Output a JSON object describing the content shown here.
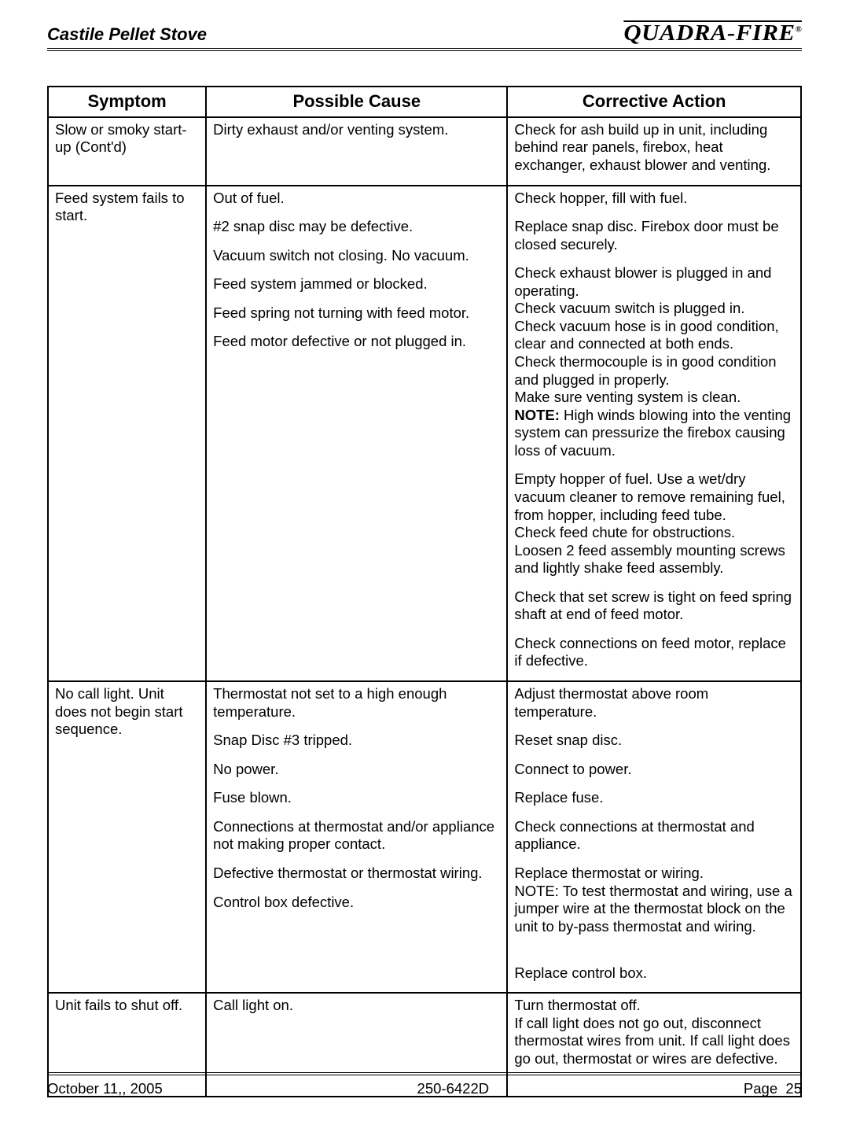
{
  "header": {
    "title": "Castile Pellet Stove",
    "brand_main": "Quadra-Fire",
    "brand_sup": "®"
  },
  "table": {
    "columns": [
      "Symptom",
      "Possible Cause",
      "Corrective Action"
    ],
    "rows": [
      {
        "symptom": "Slow or smoky start-up (Cont'd)",
        "items": [
          {
            "cause": "Dirty exhaust and/or venting system.",
            "action": "Check for ash build up in unit, including behind rear panels, firebox, heat exchanger, exhaust blower and venting."
          }
        ]
      },
      {
        "symptom": "Feed system fails to start.",
        "items": [
          {
            "cause": "Out of fuel.",
            "action": "Check hopper, fill with fuel."
          },
          {
            "cause": "#2 snap disc may be defective.",
            "action": "Replace snap disc.  Firebox door must be closed securely."
          },
          {
            "cause": "Vacuum switch not closing.  No vacuum.",
            "action_lines": [
              "Check exhaust blower is plugged in and operating.",
              "Check vacuum switch is plugged in.",
              "Check vacuum hose is in good condition, clear and connected at both ends.",
              "Check thermocouple is in good condition and plugged in properly.",
              "Make sure venting system is clean."
            ],
            "action_note_label": "NOTE:",
            "action_note_rest": "  High winds blowing into the venting system can pressurize the firebox causing loss of vacuum."
          },
          {
            "cause": "Feed system jammed or blocked.",
            "action_lines": [
              "Empty hopper of fuel.  Use a wet/dry vacuum cleaner to remove remaining fuel, from hopper, including feed tube.",
              "Check feed chute for obstructions.",
              "Loosen 2 feed assembly mounting screws and lightly shake feed assembly."
            ]
          },
          {
            "cause": "Feed spring not turning with feed motor.",
            "action": "Check that set screw is tight on feed spring shaft at end of feed motor."
          },
          {
            "cause": "Feed motor defective or not plugged in.",
            "action": "Check connections on feed motor, replace if defective."
          }
        ]
      },
      {
        "symptom": "No call light.  Unit does not begin start sequence.",
        "items": [
          {
            "cause": "Thermostat not set to a high enough temperature.",
            "action": "Adjust thermostat above room temperature."
          },
          {
            "cause": "Snap Disc #3 tripped.",
            "action": "Reset snap disc."
          },
          {
            "cause": "No power.",
            "action": "Connect to power."
          },
          {
            "cause": "Fuse blown.",
            "action": "Replace fuse."
          },
          {
            "cause": "Connections at thermostat and/or appliance not making proper contact.",
            "action": "Check connections at thermostat and appliance."
          },
          {
            "cause": "Defective thermostat or thermostat wiring.",
            "action_lines": [
              "Replace thermostat or wiring.",
              "NOTE:  To test thermostat and wiring, use a jumper wire at the thermostat block on the unit to by-pass thermostat and wiring."
            ],
            "trailing_gap": true
          },
          {
            "cause": "Control box defective.",
            "action": "Replace control box."
          }
        ]
      },
      {
        "symptom": "Unit fails to shut off.",
        "items": [
          {
            "cause": "Call light on.",
            "action_lines": [
              "Turn thermostat off.",
              "If call light does not go out, disconnect thermostat wires from unit.  If call light does go out, thermostat or wires are defective."
            ],
            "trailing_gap": true
          }
        ]
      }
    ]
  },
  "footer": {
    "left": "October 11,, 2005",
    "center": "250-6422D",
    "right_label": "Page",
    "right_num": "25"
  },
  "colors": {
    "text": "#000000",
    "background": "#ffffff",
    "border": "#000000"
  }
}
